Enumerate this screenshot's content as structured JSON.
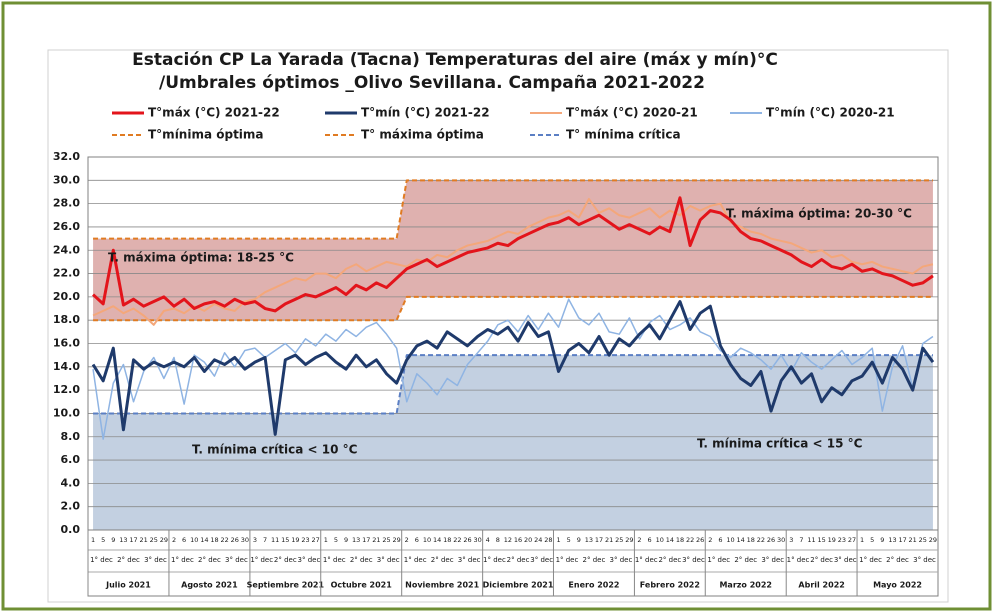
{
  "chart_data": {
    "type": "line",
    "title": "Estación CP La Yarada (Tacna) Temperaturas  del aire  (máx y mín)°C",
    "subtitle": "/Umbrales óptimos  _Olivo Sevillana. Campaña 2021-2022",
    "categories": [
      "1",
      "5",
      "9",
      "13",
      "17",
      "21",
      "25",
      "29",
      "2",
      "6",
      "10",
      "14",
      "18",
      "22",
      "26",
      "30",
      "3",
      "7",
      "11",
      "15",
      "19",
      "23",
      "27",
      "1",
      "5",
      "9",
      "13",
      "17",
      "21",
      "25",
      "29",
      "2",
      "6",
      "10",
      "14",
      "18",
      "22",
      "26",
      "30",
      "4",
      "8",
      "12",
      "16",
      "20",
      "24",
      "28",
      "1",
      "5",
      "9",
      "13",
      "17",
      "21",
      "25",
      "29",
      "2",
      "6",
      "10",
      "14",
      "18",
      "22",
      "26",
      "2",
      "6",
      "10",
      "14",
      "18",
      "22",
      "26",
      "30",
      "3",
      "7",
      "11",
      "15",
      "19",
      "23",
      "27",
      "1",
      "5",
      "9",
      "13",
      "17",
      "21",
      "25",
      "29"
    ],
    "months": [
      "Julio 2021",
      "Agosto 2021",
      "Septiembre 2021",
      "Octubre 2021",
      "Noviembre 2021",
      "Diciembre 2021",
      "Enero 2022",
      "Febrero 2022",
      "Marzo 2022",
      "Abril 2022",
      "Mayo 2022"
    ],
    "dekads": [
      "1° dec",
      "2° dec",
      "3° dec"
    ],
    "ylim": [
      0,
      32
    ],
    "yticks": [
      {
        "value": 0,
        "label": "0.0"
      },
      {
        "value": 2,
        "label": "2.0"
      },
      {
        "value": 4,
        "label": "4.0"
      },
      {
        "value": 6,
        "label": "6.0"
      },
      {
        "value": 8,
        "label": "8.0"
      },
      {
        "value": 10,
        "label": "10.0"
      },
      {
        "value": 12,
        "label": "12.0"
      },
      {
        "value": 14,
        "label": "14.0"
      },
      {
        "value": 16,
        "label": "16.0"
      },
      {
        "value": 18,
        "label": "18.0"
      },
      {
        "value": 20,
        "label": "20.0"
      },
      {
        "value": 22,
        "label": "22.0"
      },
      {
        "value": 24,
        "label": "24.0"
      },
      {
        "value": 26,
        "label": "26.0"
      },
      {
        "value": 28,
        "label": "28.0"
      },
      {
        "value": 30,
        "label": "30.0"
      },
      {
        "value": 32,
        "label": "32.0"
      }
    ],
    "grid": true,
    "series": [
      {
        "name": "T°máx (°C) 2021-22",
        "color": "#e3141b",
        "width": 3,
        "values": [
          20.2,
          19.4,
          24.0,
          19.3,
          19.8,
          19.2,
          19.6,
          20.0,
          19.2,
          19.8,
          19.0,
          19.4,
          19.6,
          19.2,
          19.8,
          19.4,
          19.6,
          19.0,
          18.8,
          19.4,
          19.8,
          20.2,
          20.0,
          20.4,
          20.8,
          20.2,
          21.0,
          20.6,
          21.2,
          20.8,
          21.6,
          22.4,
          22.8,
          23.2,
          22.6,
          23.0,
          23.4,
          23.8,
          24.0,
          24.2,
          24.6,
          24.4,
          25.0,
          25.4,
          25.8,
          26.2,
          26.4,
          26.8,
          26.2,
          26.6,
          27.0,
          26.4,
          25.8,
          26.2,
          25.8,
          25.4,
          26.0,
          25.6,
          28.5,
          24.4,
          26.6,
          27.4,
          27.2,
          26.6,
          25.6,
          25.0,
          24.8,
          24.4,
          24.0,
          23.6,
          23.0,
          22.6,
          23.2,
          22.6,
          22.4,
          22.8,
          22.2,
          22.4,
          22.0,
          21.8,
          21.4,
          21.0,
          21.2,
          21.8
        ]
      },
      {
        "name": "T°mín (°C) 2021-22",
        "color": "#1f3a6b",
        "width": 3,
        "values": [
          14.2,
          12.8,
          15.6,
          8.6,
          14.6,
          13.8,
          14.4,
          14.0,
          14.4,
          14.0,
          14.8,
          13.6,
          14.6,
          14.2,
          14.8,
          13.8,
          14.4,
          14.8,
          8.2,
          14.6,
          15.0,
          14.2,
          14.8,
          15.2,
          14.4,
          13.8,
          15.0,
          14.0,
          14.6,
          13.4,
          12.6,
          14.6,
          15.8,
          16.2,
          15.6,
          17.0,
          16.4,
          15.8,
          16.6,
          17.2,
          16.8,
          17.4,
          16.2,
          17.8,
          16.6,
          17.0,
          13.6,
          15.4,
          16.0,
          15.2,
          16.6,
          15.0,
          16.4,
          15.8,
          16.8,
          17.6,
          16.4,
          18.0,
          19.6,
          17.2,
          18.6,
          19.2,
          15.8,
          14.2,
          13.0,
          12.4,
          13.6,
          10.2,
          12.8,
          14.0,
          12.6,
          13.4,
          11.0,
          12.2,
          11.6,
          12.8,
          13.2,
          14.4,
          12.6,
          14.8,
          13.8,
          12.0,
          15.6,
          14.4
        ]
      },
      {
        "name": "T°máx (°C) 2020-21",
        "color": "#f4a77a",
        "width": 2,
        "values": [
          18.4,
          18.8,
          19.2,
          18.6,
          19.0,
          18.4,
          17.6,
          18.8,
          19.0,
          18.6,
          19.2,
          18.8,
          19.4,
          19.0,
          18.8,
          19.6,
          19.8,
          20.4,
          20.8,
          21.2,
          21.6,
          21.4,
          22.0,
          22.0,
          21.6,
          22.4,
          22.8,
          22.2,
          22.6,
          23.0,
          22.8,
          22.6,
          23.2,
          23.0,
          23.6,
          23.4,
          24.0,
          24.4,
          24.6,
          24.8,
          25.2,
          25.6,
          25.4,
          26.0,
          26.4,
          26.8,
          27.0,
          27.4,
          26.8,
          28.4,
          27.2,
          27.6,
          27.0,
          26.8,
          27.2,
          27.6,
          26.8,
          27.4,
          27.0,
          27.8,
          27.4,
          27.8,
          28.0,
          26.4,
          26.0,
          25.6,
          25.4,
          25.0,
          24.8,
          24.6,
          24.2,
          23.8,
          24.0,
          23.4,
          23.6,
          23.0,
          22.8,
          23.0,
          22.6,
          22.4,
          22.2,
          22.0,
          22.6,
          22.8
        ]
      },
      {
        "name": "T°mín (°C) 2020-21",
        "color": "#8fb4e3",
        "width": 1.5,
        "values": [
          13.8,
          7.8,
          12.6,
          14.2,
          11.0,
          13.6,
          14.8,
          13.0,
          14.8,
          10.8,
          15.0,
          14.4,
          13.2,
          15.2,
          14.0,
          15.4,
          15.6,
          14.8,
          15.4,
          16.0,
          15.2,
          16.4,
          15.8,
          16.8,
          16.2,
          17.2,
          16.6,
          17.4,
          17.8,
          16.8,
          15.6,
          11.0,
          13.4,
          12.6,
          11.6,
          13.0,
          12.4,
          14.2,
          15.2,
          16.2,
          17.6,
          18.0,
          17.0,
          18.4,
          17.2,
          18.6,
          17.4,
          19.8,
          18.2,
          17.6,
          18.6,
          17.0,
          16.8,
          18.2,
          16.4,
          17.8,
          18.4,
          17.2,
          17.6,
          18.2,
          17.0,
          16.6,
          15.4,
          14.8,
          15.6,
          15.2,
          14.6,
          13.8,
          15.0,
          13.6,
          15.2,
          14.4,
          13.8,
          14.6,
          15.4,
          14.2,
          14.8,
          15.6,
          10.2,
          14.0,
          15.8,
          12.2,
          16.0,
          16.6
        ]
      },
      {
        "name": "T°mínima óptima",
        "color": "#e07b22",
        "width": 2,
        "dash": true,
        "values": [
          18,
          18,
          18,
          18,
          18,
          18,
          18,
          18,
          18,
          18,
          18,
          18,
          18,
          18,
          18,
          18,
          18,
          18,
          18,
          18,
          18,
          18,
          18,
          18,
          18,
          18,
          18,
          18,
          18,
          18,
          18,
          20,
          20,
          20,
          20,
          20,
          20,
          20,
          20,
          20,
          20,
          20,
          20,
          20,
          20,
          20,
          20,
          20,
          20,
          20,
          20,
          20,
          20,
          20,
          20,
          20,
          20,
          20,
          20,
          20,
          20,
          20,
          20,
          20,
          20,
          20,
          20,
          20,
          20,
          20,
          20,
          20,
          20,
          20,
          20,
          20,
          20,
          20,
          20,
          20,
          20,
          20,
          20,
          20
        ]
      },
      {
        "name": "T° máxima óptima",
        "color": "#e07b22",
        "width": 2,
        "dash": true,
        "fill": "#d9a3a1",
        "values": [
          25,
          25,
          25,
          25,
          25,
          25,
          25,
          25,
          25,
          25,
          25,
          25,
          25,
          25,
          25,
          25,
          25,
          25,
          25,
          25,
          25,
          25,
          25,
          25,
          25,
          25,
          25,
          25,
          25,
          25,
          25,
          30,
          30,
          30,
          30,
          30,
          30,
          30,
          30,
          30,
          30,
          30,
          30,
          30,
          30,
          30,
          30,
          30,
          30,
          30,
          30,
          30,
          30,
          30,
          30,
          30,
          30,
          30,
          30,
          30,
          30,
          30,
          30,
          30,
          30,
          30,
          30,
          30,
          30,
          30,
          30,
          30,
          30,
          30,
          30,
          30,
          30,
          30,
          30,
          30,
          30,
          30,
          30,
          30
        ]
      },
      {
        "name": "T° mínima crítica",
        "color": "#5b7fc4",
        "width": 2,
        "dash": true,
        "fill": "#b9c8dc",
        "values": [
          10,
          10,
          10,
          10,
          10,
          10,
          10,
          10,
          10,
          10,
          10,
          10,
          10,
          10,
          10,
          10,
          10,
          10,
          10,
          10,
          10,
          10,
          10,
          10,
          10,
          10,
          10,
          10,
          10,
          10,
          10,
          15,
          15,
          15,
          15,
          15,
          15,
          15,
          15,
          15,
          15,
          15,
          15,
          15,
          15,
          15,
          15,
          15,
          15,
          15,
          15,
          15,
          15,
          15,
          15,
          15,
          15,
          15,
          15,
          15,
          15,
          15,
          15,
          15,
          15,
          15,
          15,
          15,
          15,
          15,
          15,
          15,
          15,
          15,
          15,
          15,
          15,
          15,
          15,
          15,
          15,
          15,
          15,
          15
        ]
      }
    ],
    "annotations": [
      "T. máxima óptima: 18-25 °C",
      "T. máxima óptima: 20-30 °C",
      "T. mínima crítica < 10 °C",
      "T. mínima crítica < 15 °C"
    ]
  }
}
